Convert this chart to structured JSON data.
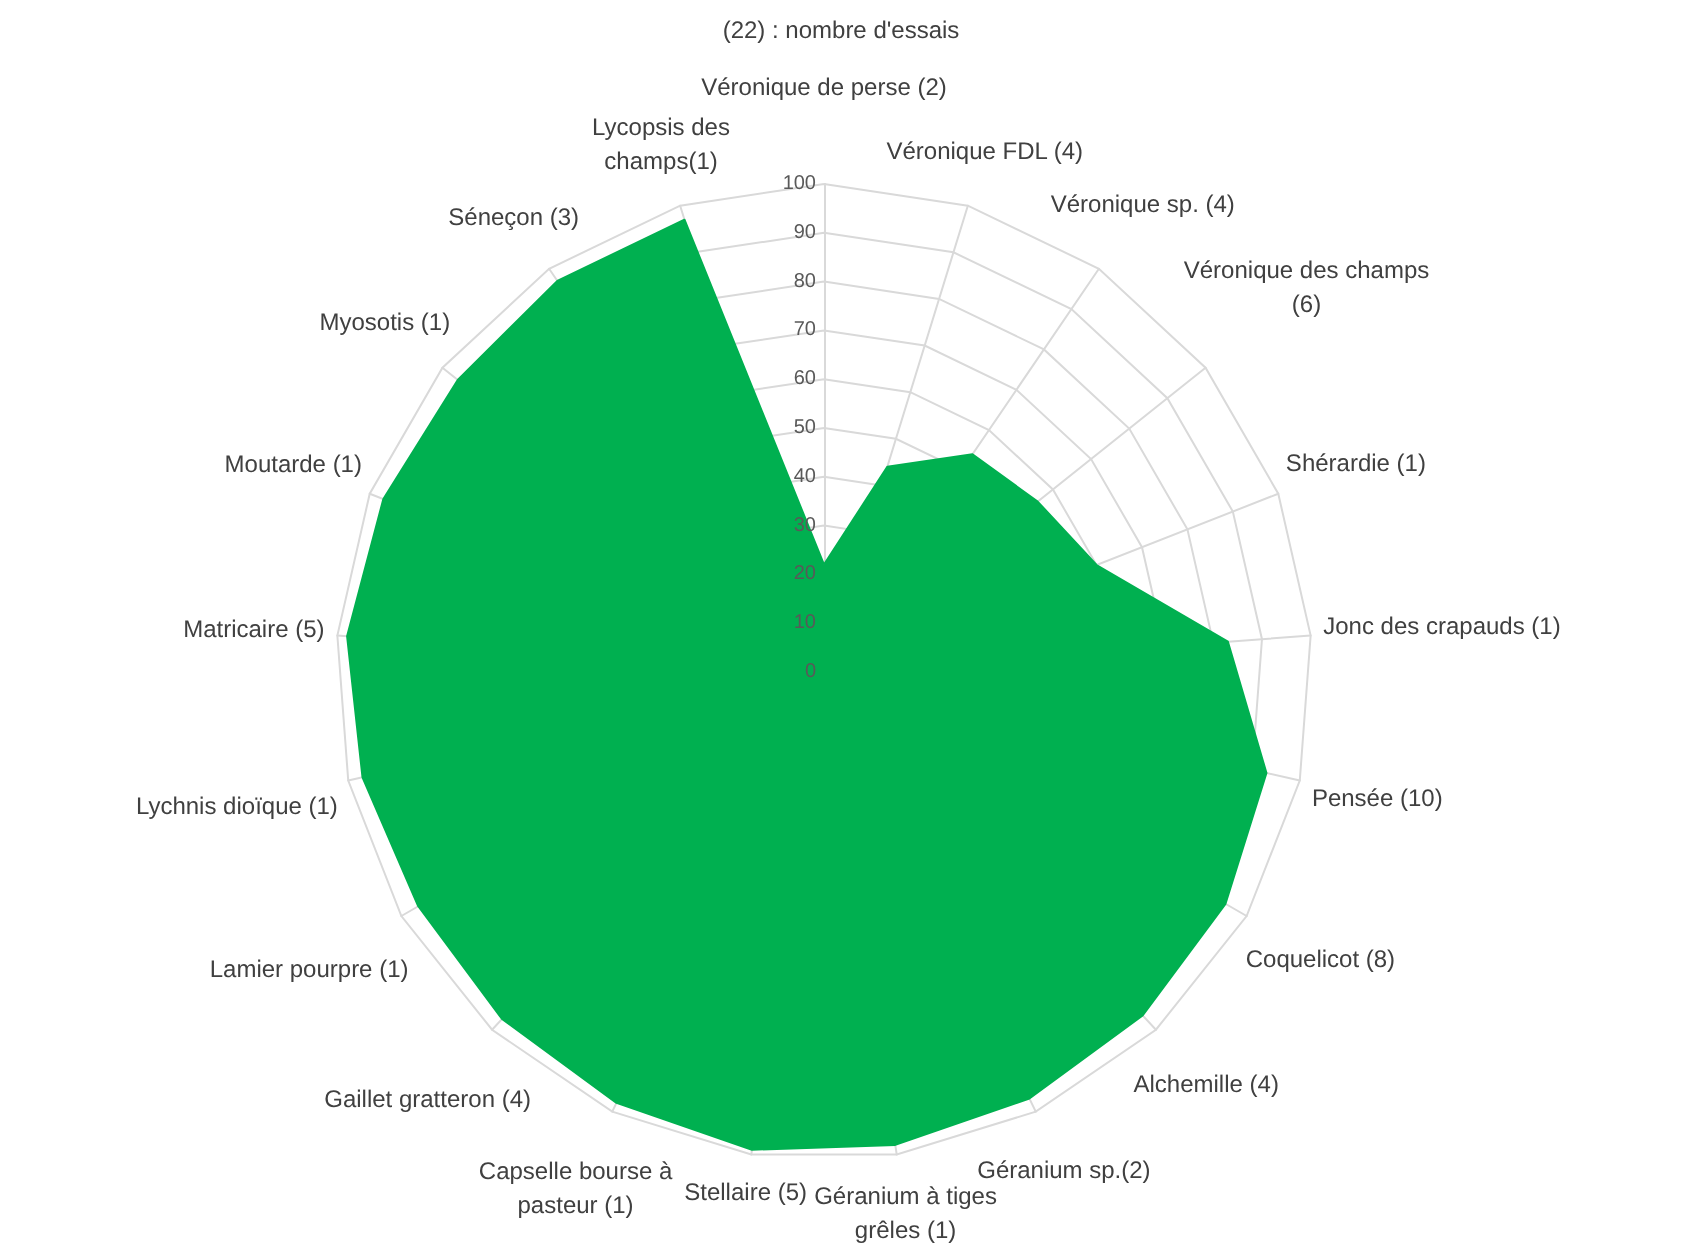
{
  "chart_data": {
    "type": "radar",
    "title": "(22) : nombre d'essais",
    "categories": [
      "Véronique de perse (2)",
      "Véronique FDL (4)",
      "Véronique sp. (4)",
      "Véronique des champs\n(6)",
      "Shérardie (1)",
      "Jonc des crapauds (1)",
      "Pensée (10)",
      "Coquelicot (8)",
      "Alchemille (4)",
      "Géranium sp.(2)",
      "Géranium à tiges\ngrêles (1)",
      "Stellaire (5)",
      "Capselle bourse à\npasteur (1)",
      "Gaillet gratteron (4)",
      "Lamier pourpre (1)",
      "Lychnis dioïque (1)",
      "Matricaire (5)",
      "Moutarde (1)",
      "Myosotis (1)",
      "Séneçon (3)",
      "Lycopsis des\nchamps(1)"
    ],
    "series": [
      {
        "color": "#00b050",
        "values": [
          22,
          44,
          54,
          56,
          60,
          83,
          93,
          95,
          96,
          97,
          98,
          99,
          98,
          97,
          96,
          97,
          98,
          97,
          96,
          97,
          97
        ]
      }
    ],
    "ylim": [
      0,
      100
    ],
    "yticks": [
      0,
      10,
      20,
      30,
      40,
      50,
      60,
      70,
      80,
      90,
      100
    ],
    "grid": true,
    "marker": "none"
  }
}
